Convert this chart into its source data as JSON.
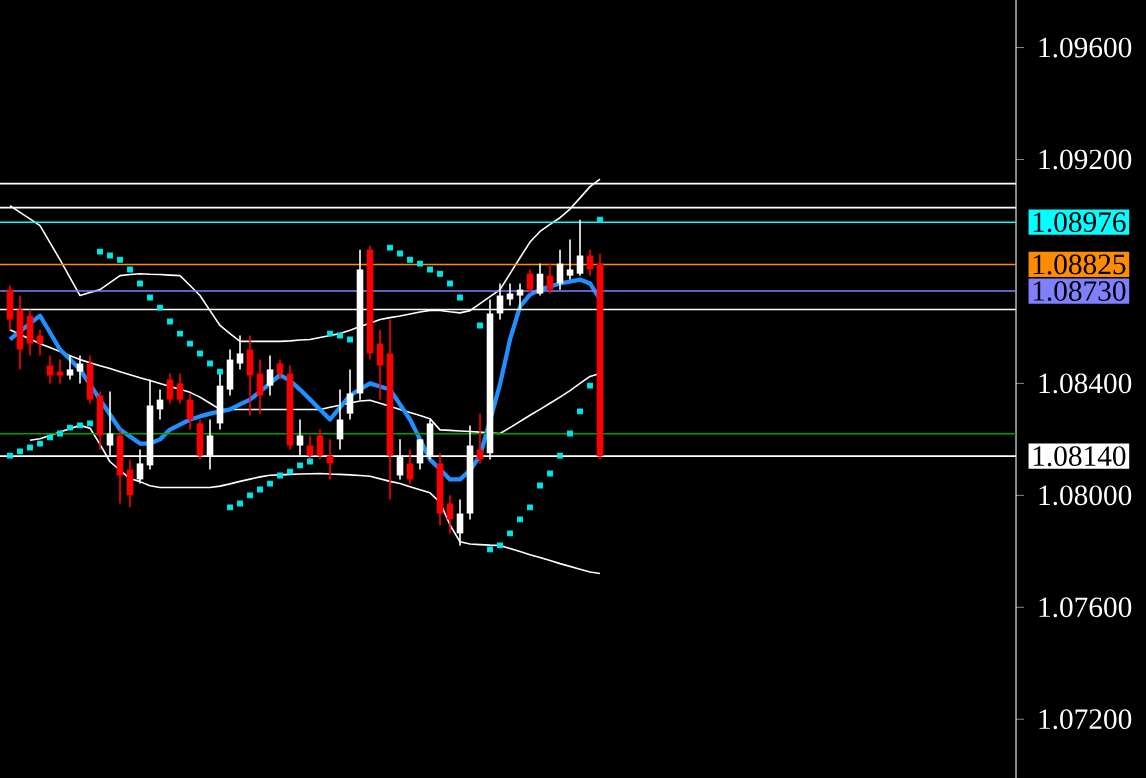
{
  "chart_data": {
    "type": "candlestick",
    "categories": [
      null,
      null,
      null,
      null,
      null,
      null,
      null,
      null,
      null,
      null,
      null,
      null,
      null,
      null,
      null,
      null,
      null,
      null,
      null,
      null,
      null,
      null,
      null,
      null,
      null,
      null,
      null,
      null,
      null,
      null,
      null,
      null,
      null,
      null,
      null,
      null,
      null,
      null,
      null,
      null,
      null,
      null,
      null,
      null,
      null,
      null,
      null,
      null,
      null,
      null,
      null,
      null,
      null,
      null,
      null,
      null,
      null,
      null,
      null,
      null
    ],
    "ylim": [
      1.0699,
      1.0977
    ],
    "yticks": [
      {
        "value": 1.072,
        "label": "1.07200"
      },
      {
        "value": 1.076,
        "label": "1.07600"
      },
      {
        "value": 1.08,
        "label": "1.08000"
      },
      {
        "value": 1.084,
        "label": "1.08400"
      },
      {
        "value": 1.092,
        "label": "1.09200"
      },
      {
        "value": 1.096,
        "label": "1.09600"
      }
    ],
    "tick_labels": "y",
    "ohlc": [
      [
        1.08735,
        1.0875,
        1.08592,
        1.08628
      ],
      [
        1.08664,
        1.08714,
        1.0845,
        1.08521
      ],
      [
        1.08642,
        1.08664,
        1.085,
        1.08542
      ],
      [
        1.08571,
        1.08592,
        1.085,
        1.08542
      ],
      [
        1.08464,
        1.085,
        1.084,
        1.08428
      ],
      [
        1.08442,
        1.08485,
        1.084,
        1.08428
      ],
      [
        1.08428,
        1.085,
        1.08414,
        1.0845
      ],
      [
        1.08442,
        1.085,
        1.084,
        1.08471
      ],
      [
        1.08471,
        1.085,
        1.08328,
        1.08342
      ],
      [
        1.08357,
        1.08371,
        1.08164,
        1.08214
      ],
      [
        1.08178,
        1.08371,
        1.08142,
        1.08221
      ],
      [
        1.08214,
        1.08235,
        1.07971,
        1.08071
      ],
      [
        1.08092,
        1.08128,
        1.07957,
        1.08
      ],
      [
        1.08057,
        1.08164,
        1.08042,
        1.08114
      ],
      [
        1.08107,
        1.08414,
        1.08092,
        1.08321
      ],
      [
        1.08307,
        1.08378,
        1.08271,
        1.08342
      ],
      [
        1.08414,
        1.08435,
        1.08328,
        1.08342
      ],
      [
        1.084,
        1.08435,
        1.08328,
        1.08342
      ],
      [
        1.08342,
        1.08364,
        1.08235,
        1.08271
      ],
      [
        1.08257,
        1.08271,
        1.08128,
        1.08142
      ],
      [
        1.08142,
        1.08271,
        1.08092,
        1.08214
      ],
      [
        1.08257,
        1.0845,
        1.08235,
        1.08392
      ],
      [
        1.08378,
        1.08521,
        1.08357,
        1.08485
      ],
      [
        1.08471,
        1.08571,
        1.0845,
        1.08507
      ],
      [
        1.08521,
        1.08571,
        1.08285,
        1.08428
      ],
      [
        1.08435,
        1.08485,
        1.08292,
        1.08357
      ],
      [
        1.08392,
        1.085,
        1.08357,
        1.0845
      ],
      [
        1.08471,
        1.08485,
        1.08414,
        1.08435
      ],
      [
        1.08435,
        1.08464,
        1.08164,
        1.08178
      ],
      [
        1.08178,
        1.08271,
        1.08142,
        1.08214
      ],
      [
        1.08178,
        1.08214,
        1.08128,
        1.08142
      ],
      [
        1.08214,
        1.08235,
        1.08128,
        1.08142
      ],
      [
        1.08142,
        1.082,
        1.08057,
        1.08114
      ],
      [
        1.082,
        1.08378,
        1.08164,
        1.08271
      ],
      [
        1.08292,
        1.0845,
        1.08271,
        1.08364
      ],
      [
        1.08364,
        1.08878,
        1.08342,
        1.08807
      ],
      [
        1.08878,
        1.08892,
        1.08485,
        1.08507
      ],
      [
        1.08542,
        1.08592,
        1.08342,
        1.08464
      ],
      [
        1.08507,
        1.08628,
        1.07985,
        1.08142
      ],
      [
        1.08071,
        1.082,
        1.08057,
        1.08142
      ],
      [
        1.08114,
        1.08164,
        1.08042,
        1.08057
      ],
      [
        1.08114,
        1.082,
        1.08092,
        1.082
      ],
      [
        1.08142,
        1.08271,
        1.08128,
        1.08257
      ],
      [
        1.08114,
        1.0815,
        1.07892,
        1.07935
      ],
      [
        1.07971,
        1.08,
        1.07864,
        1.07914
      ],
      [
        1.07864,
        1.07985,
        1.07821,
        1.07935
      ],
      [
        1.07935,
        1.0825,
        1.07914,
        1.08178
      ],
      [
        1.08164,
        1.08292,
        1.08114,
        1.08128
      ],
      [
        1.0815,
        1.087,
        1.08128,
        1.0865
      ],
      [
        1.0865,
        1.08757,
        1.08628,
        1.08714
      ],
      [
        1.087,
        1.08757,
        1.08678,
        1.08721
      ],
      [
        1.08714,
        1.08757,
        1.08664,
        1.08735
      ],
      [
        1.08792,
        1.08807,
        1.08721,
        1.08735
      ],
      [
        1.08721,
        1.08828,
        1.08714,
        1.08792
      ],
      [
        1.08785,
        1.08828,
        1.08721,
        1.08735
      ],
      [
        1.08757,
        1.08878,
        1.08735,
        1.08828
      ],
      [
        1.08785,
        1.08914,
        1.08771,
        1.08807
      ],
      [
        1.08792,
        1.08985,
        1.08785,
        1.08857
      ],
      [
        1.08857,
        1.08878,
        1.08785,
        1.08807
      ],
      [
        1.08828,
        1.08864,
        1.08128,
        1.0814
      ]
    ],
    "colors": [
      "#ff0000",
      "#ff0000",
      "#ff0000",
      "#ff0000",
      "#ff0000",
      "#ff0000",
      "#ffffff",
      "#ffffff",
      "#ff0000",
      "#ff0000",
      "#ffffff",
      "#ff0000",
      "#ff0000",
      "#ffffff",
      "#ffffff",
      "#ffffff",
      "#ff0000",
      "#ff0000",
      "#ff0000",
      "#ff0000",
      "#ffffff",
      "#ffffff",
      "#ffffff",
      "#ffffff",
      "#ff0000",
      "#ff0000",
      "#ffffff",
      "#ff0000",
      "#ff0000",
      "#ffffff",
      "#ff0000",
      "#ff0000",
      "#ff0000",
      "#ffffff",
      "#ffffff",
      "#ffffff",
      "#ff0000",
      "#ff0000",
      "#ff0000",
      "#ffffff",
      "#ff0000",
      "#ffffff",
      "#ffffff",
      "#ff0000",
      "#ff0000",
      "#ffffff",
      "#ffffff",
      "#ff0000",
      "#ffffff",
      "#ffffff",
      "#ffffff",
      "#ffffff",
      "#ff0000",
      "#ffffff",
      "#ff0000",
      "#ffffff",
      "#ffffff",
      "#ffffff",
      "#ff0000",
      "#ff0000"
    ],
    "series": [
      {
        "type": "line",
        "color": "#ffffff",
        "values": [
          1.09035,
          1.09011,
          1.08988,
          1.08964,
          1.08903,
          1.08842,
          1.08778,
          1.08714,
          1.08725,
          1.08735,
          1.0876,
          1.08785,
          1.08789,
          1.08792,
          1.0879,
          1.08789,
          1.08787,
          1.08785,
          1.0875,
          1.08714,
          1.0866,
          1.08607,
          1.08578,
          1.0855,
          1.0855,
          1.0855,
          1.0855,
          1.0855,
          1.08552,
          1.08555,
          1.08557,
          1.08564,
          1.08571,
          1.08578,
          1.0859,
          1.08603,
          1.08615,
          1.08628,
          1.08635,
          1.08641,
          1.08648,
          1.08655,
          1.08661,
          1.08661,
          1.08656,
          1.08652,
          1.0866,
          1.08685,
          1.0871,
          1.08735,
          1.08792,
          1.08849,
          1.08905,
          1.08943,
          1.08968,
          1.08992,
          1.09023,
          1.09063,
          1.09103,
          1.0913
        ]
      },
      {
        "type": "line",
        "color": "#ffffff",
        "values": [
          1.08592,
          1.08575,
          1.08559,
          1.08542,
          1.08528,
          1.08514,
          1.08499,
          1.08485,
          1.08474,
          1.08463,
          1.08453,
          1.08442,
          1.08431,
          1.0842,
          1.0841,
          1.084,
          1.08389,
          1.08379,
          1.08368,
          1.08351,
          1.08329,
          1.08307,
          1.08307,
          1.08307,
          1.08307,
          1.08307,
          1.08307,
          1.08307,
          1.08307,
          1.08307,
          1.08307,
          1.08307,
          1.08315,
          1.08322,
          1.0833,
          1.08337,
          1.0834,
          1.08329,
          1.08318,
          1.08307,
          1.08296,
          1.08285,
          1.08274,
          1.08234,
          1.08232,
          1.0823,
          1.08228,
          1.08226,
          1.08223,
          1.08221,
          1.08242,
          1.08264,
          1.08286,
          1.08307,
          1.08329,
          1.08351,
          1.08374,
          1.084,
          1.08425,
          1.08435
        ]
      },
      {
        "type": "line",
        "color": "#ffffff",
        "values": [
          null,
          null,
          1.08197,
          1.08202,
          1.08214,
          1.08226,
          1.08238,
          1.0825,
          1.0824,
          1.08182,
          1.0812,
          1.0809,
          1.0806,
          1.08049,
          1.08034,
          1.08028,
          1.08028,
          1.08028,
          1.08028,
          1.08028,
          1.08028,
          1.08033,
          1.08041,
          1.0805,
          1.08058,
          1.08066,
          1.08072,
          1.08073,
          1.08075,
          1.08076,
          1.08077,
          1.08078,
          1.08076,
          1.08075,
          1.08073,
          1.08071,
          1.08068,
          1.08059,
          1.0805,
          1.08042,
          1.08031,
          1.0802,
          1.08009,
          1.07975,
          1.07894,
          1.07834,
          1.07826,
          1.07824,
          1.07822,
          1.07821,
          1.0781,
          1.07799,
          1.07788,
          1.07778,
          1.07767,
          1.07756,
          1.07746,
          1.07736,
          1.07726,
          1.07721
        ]
      },
      {
        "type": "line",
        "color": "#1e90ff",
        "values": [
          1.08557,
          1.08586,
          1.08614,
          1.08642,
          1.08582,
          1.08521,
          1.08486,
          1.0845,
          1.08396,
          1.08342,
          1.08289,
          1.08235,
          1.0821,
          1.08185,
          1.08185,
          1.082,
          1.08235,
          1.08253,
          1.08271,
          1.08282,
          1.08292,
          1.083,
          1.08307,
          1.08325,
          1.08342,
          1.08371,
          1.084,
          1.0843,
          1.0841,
          1.08378,
          1.08343,
          1.08307,
          1.08271,
          1.08314,
          1.08357,
          1.08379,
          1.084,
          1.08389,
          1.08378,
          1.08325,
          1.08271,
          1.082,
          1.08128,
          1.08093,
          1.08057,
          1.08057,
          1.08089,
          1.08142,
          1.08267,
          1.08397,
          1.08557,
          1.08674,
          1.08717,
          1.08735,
          1.08746,
          1.08757,
          1.08764,
          1.08771,
          1.08757,
          1.087
        ]
      },
      {
        "type": "scatter",
        "color": "#00e5e5",
        "marker": "square",
        "values": [
          1.08142,
          1.08157,
          1.08171,
          1.08185,
          1.08207,
          1.08221,
          1.08242,
          1.0825,
          1.08257,
          1.08871,
          1.08857,
          1.08842,
          1.08807,
          1.08757,
          1.08707,
          1.08671,
          1.08621,
          1.08578,
          1.08542,
          1.08507,
          1.08471,
          1.08442,
          1.07957,
          1.07971,
          1.08,
          1.08021,
          1.08042,
          1.08071,
          1.08085,
          1.08107,
          1.08121,
          null,
          1.08578,
          1.08571,
          1.08557,
          null,
          null,
          null,
          1.08885,
          1.08864,
          1.08842,
          1.08828,
          1.08807,
          1.08792,
          1.08757,
          1.08707,
          null,
          1.08607,
          1.07807,
          1.07821,
          1.07864,
          1.07914,
          1.07957,
          1.08035,
          1.08078,
          1.08142,
          1.08221,
          1.083,
          1.08392,
          1.08985
        ]
      }
    ],
    "ref_lines": [
      {
        "axis": "y",
        "value": 1.09114,
        "color": "#ffffff"
      },
      {
        "axis": "y",
        "value": 1.09028,
        "color": "#ffffff"
      },
      {
        "axis": "y",
        "value": 1.08976,
        "label": "1.08976",
        "color": "#00ffff"
      },
      {
        "axis": "y",
        "value": 1.08825,
        "label": "1.08825",
        "color": "#ff8c00"
      },
      {
        "axis": "y",
        "value": 1.0873,
        "label": "1.08730",
        "color": "#8080ff"
      },
      {
        "axis": "y",
        "value": 1.08664,
        "color": "#ffffff"
      },
      {
        "axis": "y",
        "value": 1.0822,
        "color": "#00a000"
      },
      {
        "axis": "y",
        "value": 1.0814,
        "label": "1.08140",
        "color": "#ffffff"
      }
    ]
  }
}
